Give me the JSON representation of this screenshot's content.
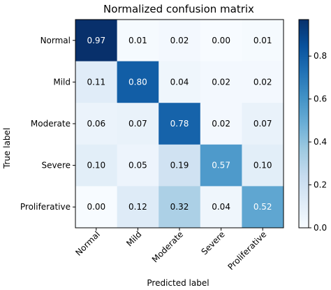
{
  "chart_data": {
    "type": "heatmap",
    "title": "Normalized confusion matrix",
    "xlabel": "Predicted label",
    "ylabel": "True label",
    "x_categories": [
      "Normal",
      "Mild",
      "Moderate",
      "Severe",
      "Proliferative"
    ],
    "y_categories": [
      "Normal",
      "Mild",
      "Moderate",
      "Severe",
      "Proliferative"
    ],
    "values": [
      [
        0.97,
        0.01,
        0.02,
        0.0,
        0.01
      ],
      [
        0.11,
        0.8,
        0.04,
        0.02,
        0.02
      ],
      [
        0.06,
        0.07,
        0.78,
        0.02,
        0.07
      ],
      [
        0.1,
        0.05,
        0.19,
        0.57,
        0.1
      ],
      [
        0.0,
        0.12,
        0.32,
        0.04,
        0.52
      ]
    ],
    "value_labels": [
      [
        "0.97",
        "0.01",
        "0.02",
        "0.00",
        "0.01"
      ],
      [
        "0.11",
        "0.80",
        "0.04",
        "0.02",
        "0.02"
      ],
      [
        "0.06",
        "0.07",
        "0.78",
        "0.02",
        "0.07"
      ],
      [
        "0.10",
        "0.05",
        "0.19",
        "0.57",
        "0.10"
      ],
      [
        "0.00",
        "0.12",
        "0.32",
        "0.04",
        "0.52"
      ]
    ],
    "colormap": "Blues",
    "colormap_colors": [
      "#f7fbff",
      "#deebf7",
      "#c6dbef",
      "#9ecae1",
      "#6baed6",
      "#4292c6",
      "#2171b5",
      "#08519c",
      "#08306b"
    ],
    "colorbar": {
      "range": [
        0.0,
        0.97
      ],
      "ticks": [
        0.0,
        0.2,
        0.4,
        0.6,
        0.8
      ],
      "tick_labels": [
        "0.0",
        "0.2",
        "0.4",
        "0.6",
        "0.8"
      ]
    },
    "grid": false
  }
}
